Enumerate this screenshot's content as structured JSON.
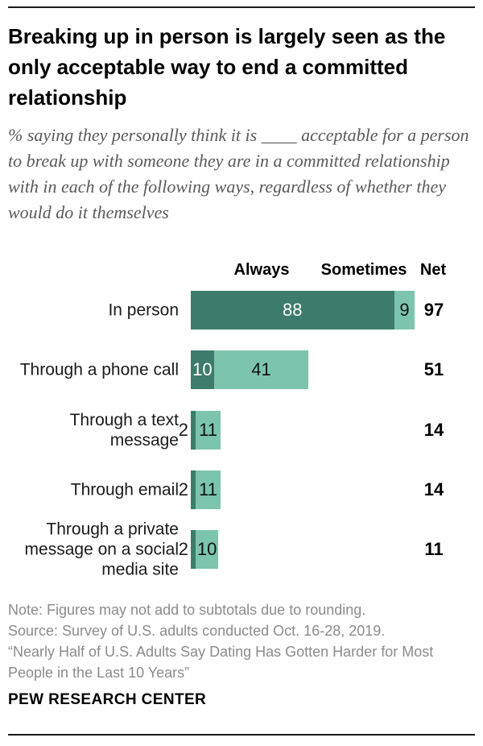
{
  "page": {
    "title": "Breaking up in person is largely seen as the only acceptable way to end a committed relationship",
    "subtitle": "% saying they personally think it is ____ acceptable for a person to break up with someone they are in a committed relationship with in each of the following ways, regardless of whether they would do it themselves",
    "note_lines": [
      "Note: Figures may not add to subtotals due to rounding.",
      "Source: Survey of U.S. adults conducted Oct. 16-28, 2019.",
      "“Nearly Half of U.S. Adults Say Dating Has Gotten Harder for Most People in the Last 10 Years”"
    ],
    "brand": "PEW RESEARCH CENTER"
  },
  "chart_data": {
    "type": "bar",
    "orientation": "horizontal",
    "stacked": true,
    "title": "Breaking up in person is largely seen as the only acceptable way to end a committed relationship",
    "columns": [
      "Always",
      "Sometimes",
      "Net"
    ],
    "categories": [
      "In person",
      "Through a phone call",
      "Through a text message",
      "Through email",
      "Through a private message on a social media site"
    ],
    "series": [
      {
        "name": "Always",
        "color": "#3d7c6c",
        "values": [
          88,
          10,
          2,
          2,
          2
        ]
      },
      {
        "name": "Sometimes",
        "color": "#7cc4ae",
        "values": [
          9,
          41,
          11,
          11,
          10
        ]
      }
    ],
    "net": [
      97,
      51,
      14,
      14,
      11
    ],
    "xlim": [
      0,
      100
    ],
    "value_labels": true,
    "legend_position": "top-as-column-headers",
    "grid": false
  },
  "colors": {
    "always": "#3d7c6c",
    "sometimes": "#7cc4ae",
    "title_text": "#000000",
    "subtitle_text": "#5a5a5c",
    "note_text": "#8b8b8b",
    "rule": "#1a1a1a"
  }
}
